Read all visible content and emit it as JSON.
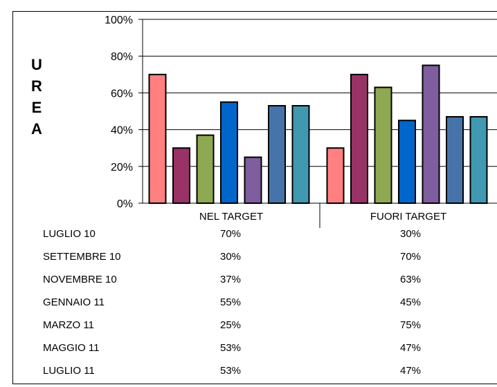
{
  "chart_data": {
    "type": "bar",
    "ylabel": "UREA",
    "ylim": [
      0,
      100
    ],
    "yticks": [
      "0%",
      "20%",
      "40%",
      "60%",
      "80%",
      "100%"
    ],
    "categories": [
      "NEL TARGET",
      "FUORI TARGET"
    ],
    "series": [
      {
        "name": "LUGLIO 10",
        "values": [
          70,
          30
        ],
        "color": "#FF8080",
        "labels": [
          "70%",
          "30%"
        ]
      },
      {
        "name": "SETTEMBRE 10",
        "values": [
          30,
          70
        ],
        "color": "#993366",
        "labels": [
          "30%",
          "70%"
        ]
      },
      {
        "name": "NOVEMBRE 10",
        "values": [
          37,
          63
        ],
        "color": "#8FA852",
        "labels": [
          "37%",
          "63%"
        ]
      },
      {
        "name": "GENNAIO 11",
        "values": [
          55,
          45
        ],
        "color": "#0066CC",
        "labels": [
          "55%",
          "45%"
        ]
      },
      {
        "name": "MARZO 11",
        "values": [
          25,
          75
        ],
        "color": "#7E5E9E",
        "labels": [
          "25%",
          "75%"
        ]
      },
      {
        "name": "MAGGIO 11",
        "values": [
          53,
          47
        ],
        "color": "#4674AA",
        "labels": [
          "53%",
          "47%"
        ]
      },
      {
        "name": "LUGLIO 11",
        "values": [
          53,
          47
        ],
        "color": "#4099B0",
        "labels": [
          "53%",
          "47%"
        ]
      }
    ],
    "grid": true,
    "legend": "data-table-below"
  }
}
